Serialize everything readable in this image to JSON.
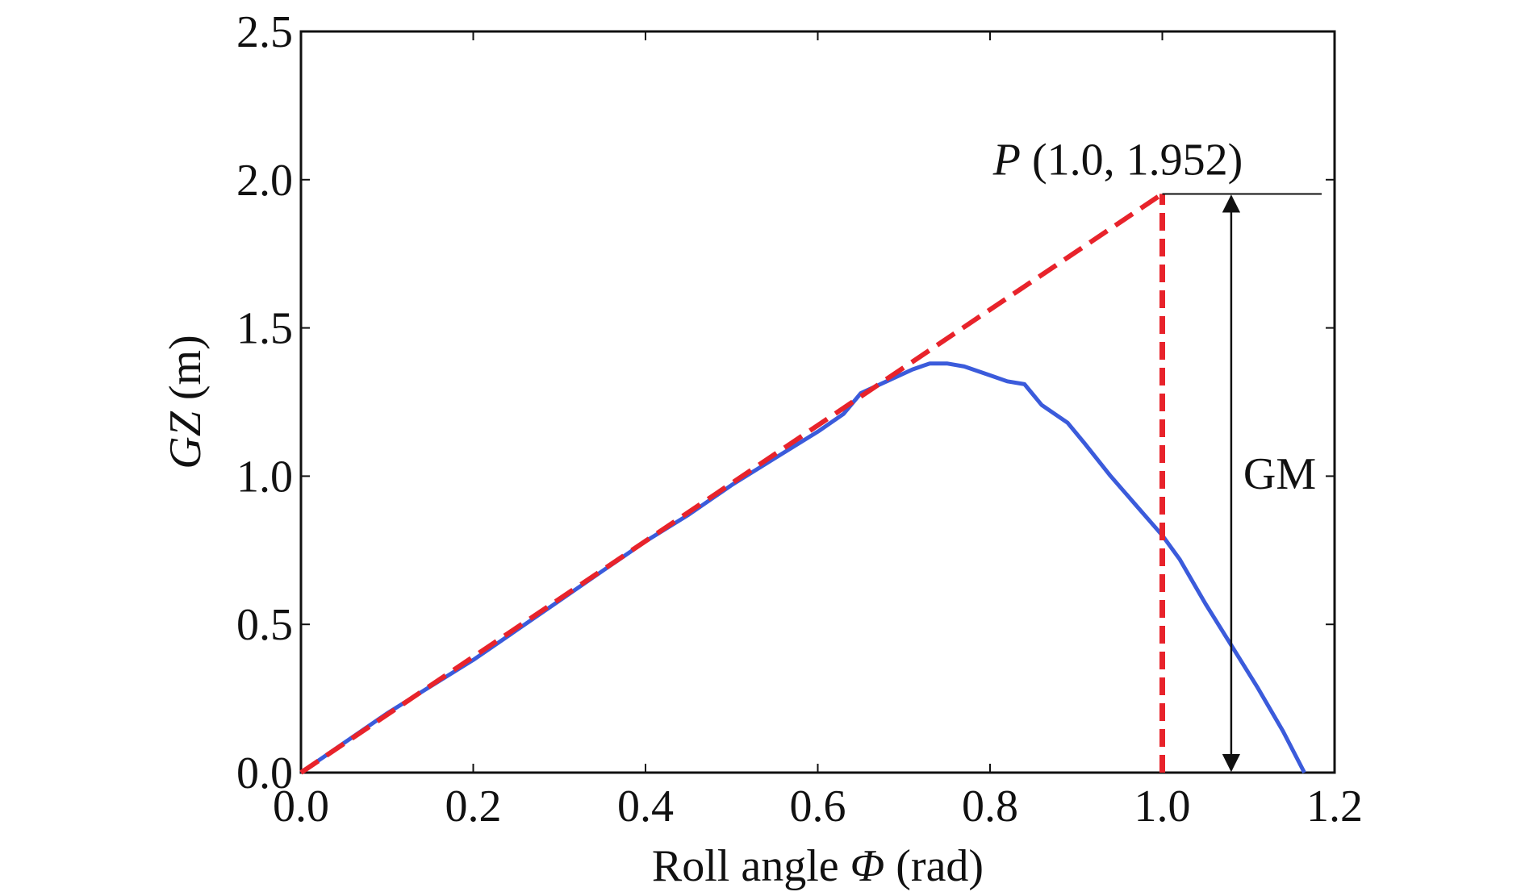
{
  "chart_data": {
    "type": "line",
    "xlabel": {
      "prefix": "Roll angle ",
      "symbol": "Φ",
      "suffix": " (rad)"
    },
    "ylabel": {
      "symbol": "GZ",
      "suffix": " (m)"
    },
    "xlim": [
      0.0,
      1.2
    ],
    "ylim": [
      0.0,
      2.5
    ],
    "xticks": [
      "0.0",
      "0.2",
      "0.4",
      "0.6",
      "0.8",
      "1.0",
      "1.2"
    ],
    "yticks": [
      "0.0",
      "0.5",
      "1.0",
      "1.5",
      "2.0",
      "2.5"
    ],
    "grid": false,
    "series": [
      {
        "color": "#3b5bdb",
        "style": "solid",
        "points": [
          [
            0.0,
            0.0
          ],
          [
            0.05,
            0.1
          ],
          [
            0.1,
            0.2
          ],
          [
            0.15,
            0.29
          ],
          [
            0.2,
            0.38
          ],
          [
            0.25,
            0.48
          ],
          [
            0.3,
            0.58
          ],
          [
            0.35,
            0.68
          ],
          [
            0.4,
            0.78
          ],
          [
            0.45,
            0.87
          ],
          [
            0.5,
            0.97
          ],
          [
            0.55,
            1.06
          ],
          [
            0.6,
            1.15
          ],
          [
            0.63,
            1.21
          ],
          [
            0.65,
            1.28
          ],
          [
            0.68,
            1.32
          ],
          [
            0.71,
            1.36
          ],
          [
            0.73,
            1.38
          ],
          [
            0.75,
            1.38
          ],
          [
            0.77,
            1.37
          ],
          [
            0.8,
            1.34
          ],
          [
            0.82,
            1.32
          ],
          [
            0.84,
            1.31
          ],
          [
            0.86,
            1.24
          ],
          [
            0.89,
            1.18
          ],
          [
            0.91,
            1.11
          ],
          [
            0.94,
            1.0
          ],
          [
            0.97,
            0.9
          ],
          [
            1.0,
            0.8
          ],
          [
            1.02,
            0.72
          ],
          [
            1.05,
            0.57
          ],
          [
            1.08,
            0.43
          ],
          [
            1.11,
            0.29
          ],
          [
            1.14,
            0.14
          ],
          [
            1.165,
            0.0
          ]
        ]
      },
      {
        "color": "#e8232b",
        "style": "dashed",
        "points": [
          [
            0.0,
            0.0
          ],
          [
            1.0,
            1.952
          ]
        ]
      },
      {
        "color": "#e8232b",
        "style": "dashed",
        "points": [
          [
            1.0,
            0.0
          ],
          [
            1.0,
            1.952
          ]
        ]
      }
    ],
    "annotations": {
      "point_label": {
        "symbol": "P",
        "text": " (1.0, 1.952)",
        "x": 1.0,
        "y": 1.952
      },
      "gm_label": "GM",
      "gm_arrow_x": 1.08,
      "gm_top": 1.952,
      "gm_bottom": 0.0,
      "hline_x_end": 1.185
    }
  }
}
